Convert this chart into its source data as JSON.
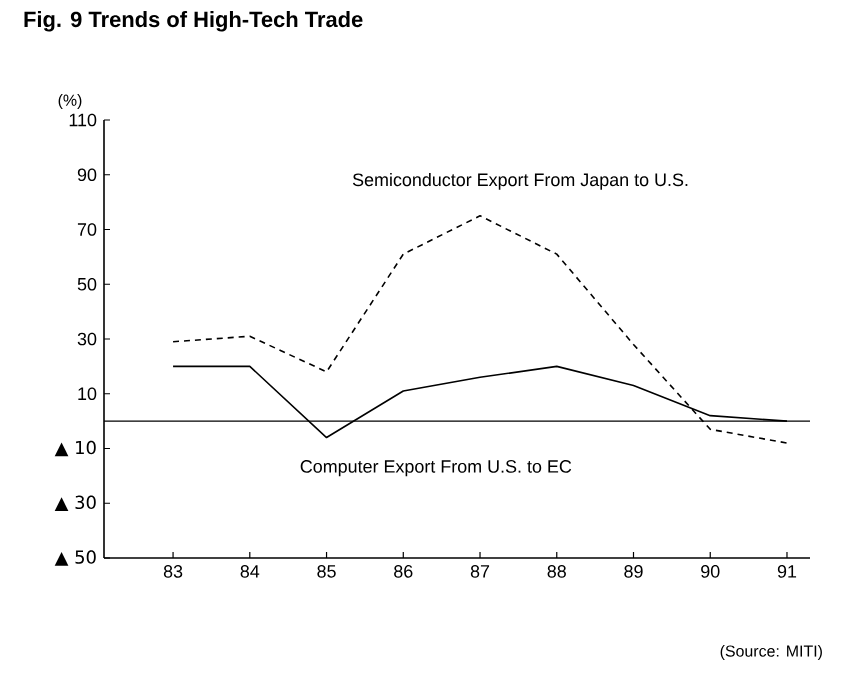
{
  "chart_data": {
    "type": "line",
    "title": "Fig. 9  Trends of High-Tech Trade",
    "ylabel": "(%)",
    "x": [
      83,
      84,
      85,
      86,
      87,
      88,
      89,
      90,
      91
    ],
    "series": [
      {
        "name": "Semiconductor Export From Japan to U.S.",
        "color": "#000000",
        "line_style": "dashed",
        "values": [
          29,
          31,
          18,
          61,
          75,
          61,
          28,
          -3,
          -8
        ]
      },
      {
        "name": "Computer Export From U.S. to EC",
        "color": "#000000",
        "line_style": "solid",
        "values": [
          20,
          20,
          -6,
          11,
          16,
          20,
          13,
          2,
          0
        ]
      }
    ],
    "xlim": [
      82.1,
      91.3
    ],
    "xticks": [
      83,
      84,
      85,
      86,
      87,
      88,
      89,
      90,
      91
    ],
    "ylim": [
      -50,
      110
    ],
    "yticks": [
      110,
      90,
      70,
      50,
      30,
      10,
      {
        "value": -10,
        "label": "▲ 10"
      },
      {
        "value": -30,
        "label": "▲ 30"
      },
      {
        "value": -50,
        "label": "▲ 50"
      }
    ],
    "ref_lines": [
      {
        "axis": "y",
        "value": 0
      }
    ],
    "annotations": [
      "(Source: MITI)"
    ],
    "marker": "none"
  }
}
